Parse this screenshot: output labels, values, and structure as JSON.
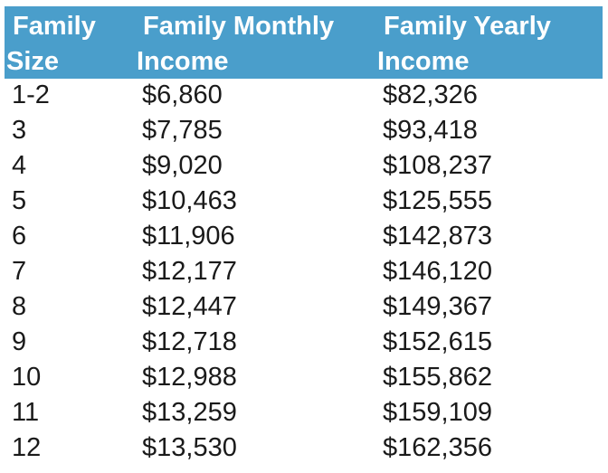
{
  "table": {
    "headers": {
      "size_line1": "Family",
      "size_line2": "Size",
      "monthly_line1": "Family Monthly",
      "monthly_line2": "Income",
      "yearly_line1": "Family Yearly",
      "yearly_line2": "Income"
    },
    "rows": [
      {
        "size": "1-2",
        "monthly": "$6,860",
        "yearly": "$82,326"
      },
      {
        "size": "3",
        "monthly": "$7,785",
        "yearly": "$93,418"
      },
      {
        "size": "4",
        "monthly": "$9,020",
        "yearly": "$108,237"
      },
      {
        "size": "5",
        "monthly": "$10,463",
        "yearly": "$125,555"
      },
      {
        "size": "6",
        "monthly": "$11,906",
        "yearly": "$142,873"
      },
      {
        "size": "7",
        "monthly": "$12,177",
        "yearly": "$146,120"
      },
      {
        "size": "8",
        "monthly": "$12,447",
        "yearly": "$149,367"
      },
      {
        "size": "9",
        "monthly": "$12,718",
        "yearly": "$152,615"
      },
      {
        "size": "10",
        "monthly": "$12,988",
        "yearly": "$155,862"
      },
      {
        "size": "11",
        "monthly": "$13,259",
        "yearly": "$159,109"
      },
      {
        "size": "12",
        "monthly": "$13,530",
        "yearly": "$162,356"
      }
    ]
  },
  "colors": {
    "header_bg": "#4a9ecb",
    "header_text": "#ffffff",
    "body_text": "#1a1a1a"
  }
}
